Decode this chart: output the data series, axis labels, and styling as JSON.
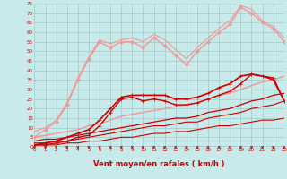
{
  "bg_color": "#c8eaea",
  "grid_color": "#a0c8c8",
  "xlabel": "Vent moyen/en rafales ( km/h )",
  "xlabel_color": "#cc0000",
  "xlabel_fontsize": 6,
  "tick_label_color": "#cc0000",
  "xlim": [
    0,
    23
  ],
  "ylim": [
    0,
    75
  ],
  "xticks": [
    0,
    1,
    2,
    3,
    4,
    5,
    6,
    7,
    8,
    9,
    10,
    11,
    12,
    13,
    14,
    15,
    16,
    17,
    18,
    19,
    20,
    21,
    22,
    23
  ],
  "yticks": [
    0,
    5,
    10,
    15,
    20,
    25,
    30,
    35,
    40,
    45,
    50,
    55,
    60,
    65,
    70,
    75
  ],
  "lines": [
    {
      "x": [
        0,
        1,
        2,
        3,
        4,
        5,
        6,
        7,
        8,
        9,
        10,
        11,
        12,
        13,
        14,
        15,
        16,
        17,
        18,
        19,
        20,
        21,
        22,
        23
      ],
      "y": [
        1,
        1,
        1,
        2,
        2,
        3,
        3,
        4,
        5,
        5,
        6,
        7,
        7,
        8,
        8,
        9,
        10,
        11,
        11,
        12,
        13,
        14,
        14,
        15
      ],
      "color": "#cc0000",
      "lw": 0.8,
      "marker": null,
      "ms": 0
    },
    {
      "x": [
        0,
        1,
        2,
        3,
        4,
        5,
        6,
        7,
        8,
        9,
        10,
        11,
        12,
        13,
        14,
        15,
        16,
        17,
        18,
        19,
        20,
        21,
        22,
        23
      ],
      "y": [
        2,
        2,
        3,
        3,
        4,
        5,
        6,
        7,
        8,
        9,
        10,
        11,
        11,
        12,
        13,
        13,
        15,
        16,
        17,
        18,
        20,
        21,
        22,
        24
      ],
      "color": "#cc0000",
      "lw": 0.8,
      "marker": null,
      "ms": 0
    },
    {
      "x": [
        0,
        1,
        2,
        3,
        4,
        5,
        6,
        7,
        8,
        9,
        10,
        11,
        12,
        13,
        14,
        15,
        16,
        17,
        18,
        19,
        20,
        21,
        22,
        23
      ],
      "y": [
        3,
        4,
        4,
        5,
        6,
        7,
        8,
        9,
        10,
        11,
        12,
        13,
        14,
        15,
        15,
        16,
        18,
        19,
        20,
        22,
        24,
        25,
        27,
        28
      ],
      "color": "#cc0000",
      "lw": 0.9,
      "marker": null,
      "ms": 0
    },
    {
      "x": [
        0,
        1,
        2,
        3,
        4,
        5,
        6,
        7,
        8,
        9,
        10,
        11,
        12,
        13,
        14,
        15,
        16,
        17,
        18,
        19,
        20,
        21,
        22,
        23
      ],
      "y": [
        5,
        6,
        7,
        8,
        9,
        11,
        12,
        14,
        16,
        17,
        18,
        19,
        20,
        21,
        22,
        23,
        25,
        27,
        28,
        30,
        32,
        34,
        35,
        37
      ],
      "color": "#ee9999",
      "lw": 1.0,
      "marker": null,
      "ms": 0
    },
    {
      "x": [
        0,
        1,
        2,
        3,
        4,
        5,
        6,
        7,
        8,
        9,
        10,
        11,
        12,
        13,
        14,
        15,
        16,
        17,
        18,
        19,
        20,
        21,
        22,
        23
      ],
      "y": [
        1,
        1,
        2,
        3,
        5,
        6,
        11,
        18,
        25,
        26,
        24,
        25,
        24,
        22,
        22,
        23,
        25,
        27,
        29,
        33,
        38,
        37,
        35,
        24
      ],
      "color": "#cc0000",
      "lw": 1.0,
      "marker": "+",
      "ms": 3
    },
    {
      "x": [
        0,
        1,
        2,
        3,
        4,
        5,
        6,
        7,
        8,
        9,
        10,
        11,
        12,
        13,
        14,
        15,
        16,
        17,
        18,
        19,
        20,
        21,
        22,
        23
      ],
      "y": [
        1,
        2,
        3,
        5,
        7,
        9,
        14,
        20,
        26,
        27,
        27,
        27,
        27,
        25,
        25,
        26,
        28,
        31,
        33,
        37,
        38,
        37,
        36,
        24
      ],
      "color": "#cc0000",
      "lw": 1.2,
      "marker": "+",
      "ms": 3
    },
    {
      "x": [
        0,
        1,
        2,
        3,
        4,
        5,
        6,
        7,
        8,
        9,
        10,
        11,
        12,
        13,
        14,
        15,
        16,
        17,
        18,
        19,
        20,
        21,
        22,
        23
      ],
      "y": [
        5,
        9,
        13,
        22,
        35,
        46,
        55,
        52,
        55,
        55,
        52,
        57,
        53,
        48,
        43,
        50,
        55,
        60,
        64,
        73,
        70,
        65,
        62,
        55
      ],
      "color": "#ee9999",
      "lw": 1.0,
      "marker": "D",
      "ms": 2
    },
    {
      "x": [
        0,
        1,
        2,
        3,
        4,
        5,
        6,
        7,
        8,
        9,
        10,
        11,
        12,
        13,
        14,
        15,
        16,
        17,
        18,
        19,
        20,
        21,
        22,
        23
      ],
      "y": [
        8,
        10,
        14,
        23,
        36,
        47,
        56,
        54,
        56,
        57,
        55,
        59,
        56,
        51,
        46,
        52,
        57,
        62,
        66,
        74,
        72,
        66,
        63,
        57
      ],
      "color": "#ee9999",
      "lw": 0.8,
      "marker": null,
      "ms": 0
    }
  ],
  "wind_symbols": [
    0,
    1,
    2,
    3,
    4,
    5,
    6,
    7,
    8,
    9,
    10,
    11,
    12,
    13,
    14,
    15,
    16,
    17,
    18,
    19,
    20,
    21,
    22,
    23
  ]
}
